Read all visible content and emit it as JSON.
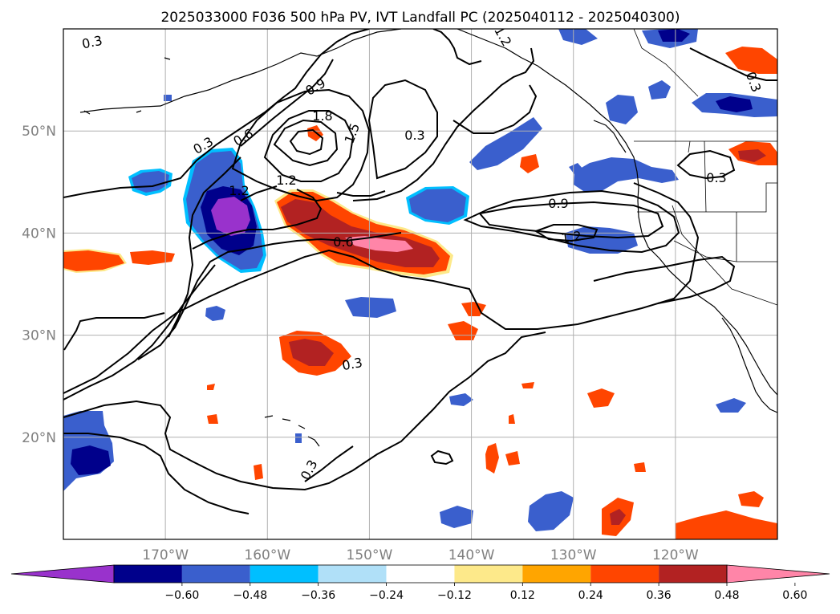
{
  "figure": {
    "title": "2025033000 F036 500 hPa PV, IVT Landfall PC (2025040112 - 2025040300)"
  },
  "map": {
    "lon_range": [
      -180,
      -110
    ],
    "lat_range": [
      10,
      60
    ],
    "lat_ticks": [
      {
        "value": 20,
        "label": "20°N"
      },
      {
        "value": 30,
        "label": "30°N"
      },
      {
        "value": 40,
        "label": "40°N"
      },
      {
        "value": 50,
        "label": "50°N"
      }
    ],
    "lon_ticks": [
      {
        "value": -170,
        "label": "170°W"
      },
      {
        "value": -160,
        "label": "160°W"
      },
      {
        "value": -150,
        "label": "150°W"
      },
      {
        "value": -140,
        "label": "140°W"
      },
      {
        "value": -130,
        "label": "130°W"
      },
      {
        "value": -120,
        "label": "120°W"
      }
    ]
  },
  "colorbar": {
    "tick_labels": [
      "−0.60",
      "−0.48",
      "−0.36",
      "−0.24",
      "−0.12",
      "0.12",
      "0.24",
      "0.36",
      "0.48",
      "0.60"
    ],
    "colors": [
      "#9932cc",
      "#00008b",
      "#3a5fcd",
      "#00bfff",
      "#b0e0f8",
      "#ffffff",
      "#fde98a",
      "#ffa500",
      "#ff4500",
      "#b22222",
      "#ff85a8"
    ]
  },
  "contour_labels": [
    "0.3",
    "0.6",
    "0.9",
    "1.2",
    "1.5",
    "1.8"
  ],
  "colors": {
    "contour": "#000000",
    "gridline": "#b0b0b0",
    "tick_label": "#808080"
  }
}
